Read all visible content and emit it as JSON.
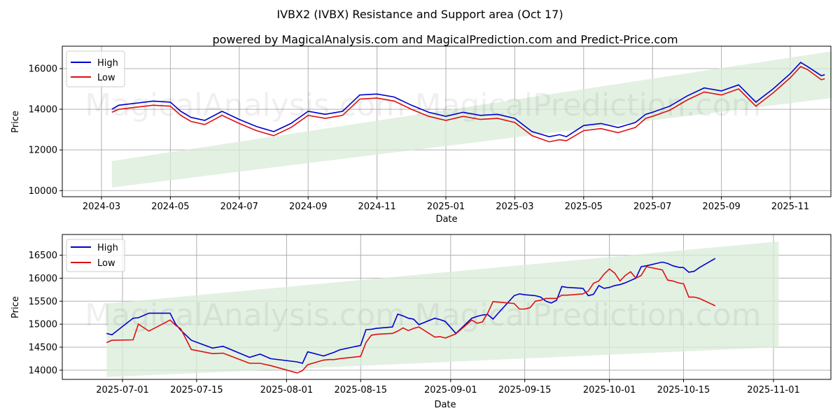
{
  "title": "IVBX2 (IVBX) Resistance and Support area (Oct 17)",
  "subtitle": "powered by MagicalAnalysis.com and MagicalPrediction.com and Predict-Price.com",
  "watermarks": [
    "MagicalAnalysis.com",
    "MagicalPrediction.com"
  ],
  "colors": {
    "high": "#0000cc",
    "low": "#dd1111",
    "band": "#d9ecd9",
    "grid": "#b0b0b0"
  },
  "chart_data": [
    {
      "type": "line",
      "xlabel": "Date",
      "ylabel": "Price",
      "ylim": [
        9700,
        17100
      ],
      "yticks": [
        10000,
        12000,
        14000,
        16000
      ],
      "ytick_labels": [
        "10000",
        "12000",
        "14000",
        "16000"
      ],
      "xticks": [
        "2024-03",
        "2024-05",
        "2024-07",
        "2024-09",
        "2024-11",
        "2025-01",
        "2025-03",
        "2025-05",
        "2025-07",
        "2025-09",
        "2025-11"
      ],
      "legend": [
        "High",
        "Low"
      ],
      "legend_position": "top-left",
      "grid": true,
      "band": {
        "start_period": 0.3,
        "end_period": 21.2,
        "start_range": [
          10150,
          11450
        ],
        "end_range": [
          14550,
          16850
        ]
      },
      "series": [
        {
          "name": "High",
          "period": [
            0.3,
            0.5,
            1.0,
            1.5,
            2.0,
            2.3,
            2.6,
            3.0,
            3.5,
            4.0,
            4.5,
            5.0,
            5.5,
            6.0,
            6.5,
            7.0,
            7.5,
            8.0,
            8.5,
            9.0,
            9.5,
            10.0,
            10.5,
            11.0,
            11.5,
            12.0,
            12.5,
            13.0,
            13.3,
            13.5,
            14.0,
            14.5,
            15.0,
            15.5,
            15.8,
            16.0,
            16.5,
            17.0,
            17.5,
            18.0,
            18.5,
            19.0,
            19.5,
            20.0,
            20.3,
            20.5,
            20.9,
            21.0
          ],
          "values": [
            14000,
            14200,
            14300,
            14400,
            14350,
            13900,
            13600,
            13450,
            13900,
            13500,
            13150,
            12900,
            13300,
            13900,
            13750,
            13900,
            14700,
            14750,
            14600,
            14200,
            13850,
            13650,
            13850,
            13700,
            13750,
            13550,
            12900,
            12650,
            12750,
            12650,
            13200,
            13300,
            13100,
            13350,
            13750,
            13850,
            14150,
            14650,
            15050,
            14900,
            15200,
            14350,
            15000,
            15750,
            16300,
            16100,
            15650,
            15700
          ]
        },
        {
          "name": "Low",
          "period": [
            0.3,
            0.5,
            1.0,
            1.5,
            2.0,
            2.3,
            2.6,
            3.0,
            3.5,
            4.0,
            4.5,
            5.0,
            5.5,
            6.0,
            6.5,
            7.0,
            7.5,
            8.0,
            8.5,
            9.0,
            9.5,
            10.0,
            10.5,
            11.0,
            11.5,
            12.0,
            12.5,
            13.0,
            13.3,
            13.5,
            14.0,
            14.5,
            15.0,
            15.5,
            15.8,
            16.0,
            16.5,
            17.0,
            17.5,
            18.0,
            18.5,
            19.0,
            19.5,
            20.0,
            20.3,
            20.5,
            20.9,
            21.0
          ],
          "values": [
            13850,
            14000,
            14100,
            14200,
            14150,
            13700,
            13400,
            13250,
            13700,
            13300,
            12950,
            12700,
            13100,
            13700,
            13550,
            13700,
            14500,
            14550,
            14400,
            14000,
            13650,
            13450,
            13650,
            13500,
            13550,
            13350,
            12700,
            12400,
            12500,
            12450,
            12950,
            13050,
            12850,
            13100,
            13550,
            13650,
            13950,
            14450,
            14850,
            14700,
            15000,
            14150,
            14800,
            15550,
            16100,
            15950,
            15450,
            15500
          ]
        }
      ]
    },
    {
      "type": "line",
      "xlabel": "Date",
      "ylabel": "Price",
      "ylim": [
        13800,
        16950
      ],
      "yticks": [
        14000,
        14500,
        15000,
        15500,
        16000,
        16500
      ],
      "ytick_labels": [
        "14000",
        "14500",
        "15000",
        "15500",
        "16000",
        "16500"
      ],
      "xticks": [
        "2025-07-01",
        "2025-07-15",
        "2025-08-01",
        "2025-08-15",
        "2025-09-01",
        "2025-09-15",
        "2025-10-01",
        "2025-10-15",
        "2025-11-01"
      ],
      "legend": [
        "High",
        "Low"
      ],
      "legend_position": "top-left",
      "grid": true,
      "band": {
        "start_day": -3,
        "end_day": 124,
        "start_range": [
          13850,
          15450
        ],
        "end_range": [
          14500,
          16800
        ]
      },
      "series": [
        {
          "name": "High",
          "day": [
            -3,
            -2,
            2,
            3,
            5,
            9,
            10,
            11,
            13,
            17,
            19,
            24,
            26,
            28,
            33,
            34,
            35,
            38,
            39,
            40,
            41,
            45,
            46,
            47,
            48,
            51,
            52,
            53,
            54,
            55,
            56,
            59,
            60,
            61,
            63,
            66,
            67,
            68,
            69,
            70,
            71,
            74,
            75,
            76,
            77,
            78,
            79,
            80,
            81,
            82,
            83,
            84,
            87,
            88,
            89,
            90,
            91,
            92,
            93,
            94,
            95,
            96,
            97,
            98,
            99,
            102,
            103,
            104,
            105,
            106,
            107,
            108,
            109,
            112
          ],
          "values": [
            14800,
            14770,
            15130,
            15140,
            15240,
            15240,
            15010,
            14870,
            14650,
            14480,
            14520,
            14280,
            14350,
            14250,
            14180,
            14150,
            14400,
            14310,
            14350,
            14390,
            14440,
            14540,
            14880,
            14890,
            14910,
            14940,
            15220,
            15180,
            15130,
            15110,
            14990,
            15130,
            15100,
            15060,
            14800,
            15130,
            15170,
            15200,
            15210,
            15110,
            15240,
            15620,
            15660,
            15640,
            15630,
            15620,
            15590,
            15500,
            15460,
            15520,
            15820,
            15800,
            15780,
            15620,
            15650,
            15840,
            15780,
            15800,
            15840,
            15860,
            15900,
            15950,
            16000,
            16250,
            16270,
            16350,
            16320,
            16270,
            16240,
            16230,
            16130,
            16150,
            16230,
            16430
          ]
        },
        {
          "name": "Low",
          "day": [
            -3,
            -2,
            2,
            3,
            5,
            9,
            10,
            11,
            13,
            17,
            19,
            24,
            26,
            28,
            33,
            34,
            35,
            38,
            39,
            40,
            41,
            45,
            46,
            47,
            48,
            51,
            52,
            53,
            54,
            55,
            56,
            59,
            60,
            61,
            63,
            66,
            67,
            68,
            69,
            70,
            71,
            74,
            75,
            76,
            77,
            78,
            79,
            80,
            81,
            82,
            83,
            84,
            87,
            88,
            89,
            90,
            91,
            92,
            93,
            94,
            95,
            96,
            97,
            98,
            99,
            102,
            103,
            104,
            105,
            106,
            107,
            108,
            109,
            112
          ],
          "values": [
            14600,
            14650,
            14660,
            15000,
            14850,
            15090,
            14980,
            14900,
            14450,
            14360,
            14370,
            14150,
            14150,
            14100,
            13940,
            13990,
            14120,
            14220,
            14230,
            14230,
            14250,
            14300,
            14600,
            14760,
            14780,
            14800,
            14850,
            14920,
            14860,
            14910,
            14940,
            14720,
            14730,
            14700,
            14790,
            15090,
            15020,
            15050,
            15240,
            15490,
            15480,
            15450,
            15330,
            15330,
            15360,
            15500,
            15520,
            15560,
            15560,
            15560,
            15630,
            15630,
            15660,
            15720,
            15890,
            15940,
            16090,
            16200,
            16110,
            15940,
            16060,
            16140,
            16000,
            16060,
            16250,
            16180,
            15960,
            15940,
            15900,
            15880,
            15590,
            15590,
            15560,
            15400
          ]
        }
      ]
    }
  ]
}
